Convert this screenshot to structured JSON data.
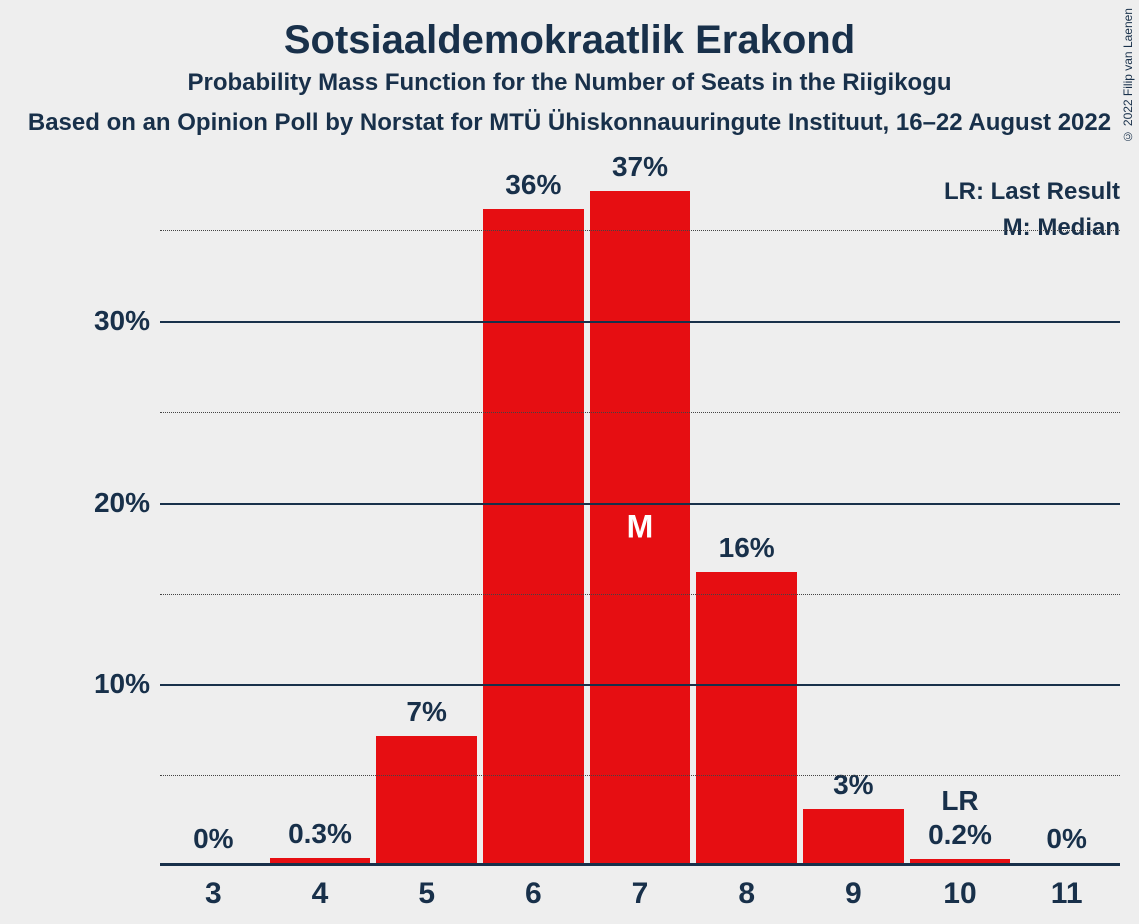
{
  "title": "Sotsiaaldemokraatlik Erakond",
  "subtitle": "Probability Mass Function for the Number of Seats in the Riigikogu",
  "subsubtitle": "Based on an Opinion Poll by Norstat for MTÜ Ühiskonnauuringute Instituut, 16–22 August 2022",
  "copyright": "© 2022 Filip van Laenen",
  "legend": {
    "lr": "LR: Last Result",
    "m": "M: Median"
  },
  "chart": {
    "type": "bar",
    "bar_color": "#e60e12",
    "text_color": "#18304a",
    "background_color": "#eeeeee",
    "grid_major_color": "#18304a",
    "grid_minor_color": "#444444",
    "title_fontsize": 40,
    "subtitle_fontsize": 24,
    "axis_label_fontsize": 28,
    "bar_label_fontsize": 28,
    "ylim": [
      0,
      38
    ],
    "y_major_ticks": [
      10,
      20,
      30
    ],
    "y_minor_ticks": [
      5,
      15,
      25,
      35
    ],
    "y_tick_labels": [
      "10%",
      "20%",
      "30%"
    ],
    "categories": [
      "3",
      "4",
      "5",
      "6",
      "7",
      "8",
      "9",
      "10",
      "11"
    ],
    "values": [
      0,
      0.3,
      7,
      36,
      37,
      16,
      3,
      0.2,
      0
    ],
    "value_labels": [
      "0%",
      "0.3%",
      "7%",
      "36%",
      "37%",
      "16%",
      "3%",
      "0.2%",
      "0%"
    ],
    "pre_labels": {
      "10": "LR"
    },
    "in_labels": {
      "7": "M"
    },
    "bar_width": 0.95
  }
}
